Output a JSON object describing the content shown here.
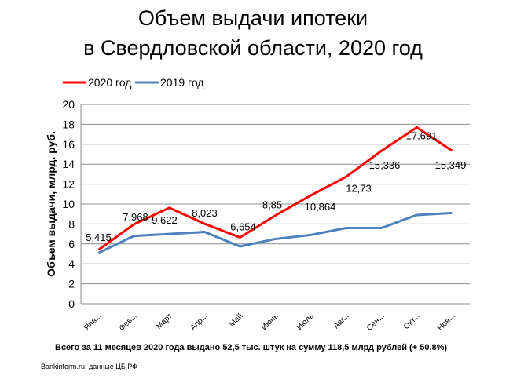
{
  "chart_data": {
    "type": "line",
    "title_line1": "Объем выдачи ипотеки",
    "title_line2": "в Свердловской  области, 2020 год",
    "ylabel": "Объем выдачи, млрд. руб.",
    "xlabel": "",
    "ylim": [
      0,
      20
    ],
    "yticks": [
      "0",
      "2",
      "4",
      "6",
      "8",
      "10",
      "12",
      "14",
      "16",
      "18",
      "20"
    ],
    "grid": true,
    "legend_position": "top-left",
    "categories": [
      "Янв...",
      "Фев...",
      "Март",
      "Апр...",
      "Май",
      "Июнь",
      "Июль",
      "Авг...",
      "Сен...",
      "Окт...",
      "Ноя..."
    ],
    "series": [
      {
        "name": "2020 год",
        "color": "#ff0000",
        "values": [
          5.415,
          7.968,
          9.622,
          8.023,
          6.654,
          8.85,
          10.864,
          12.73,
          15.336,
          17.691,
          15.349
        ],
        "labels": [
          "5,415",
          "7,968",
          "9,622",
          "8,023",
          "6,654",
          "8,85",
          "10,864",
          "12,73",
          "15,336",
          "17,691",
          "15,349"
        ]
      },
      {
        "name": "2019 год",
        "color": "#4f81bd",
        "values": [
          5.1,
          6.8,
          7.0,
          7.2,
          5.75,
          6.5,
          6.9,
          7.6,
          7.6,
          8.9,
          9.1
        ]
      }
    ]
  },
  "footer": {
    "summary": "Всего за 11 месяцев 2020 года  выдано 52,5 тыс. штук на  сумму 118,5 млрд  рублей  (+ 50,8%)",
    "source": "Bankinform.ru,  данные ЦБ РФ"
  }
}
